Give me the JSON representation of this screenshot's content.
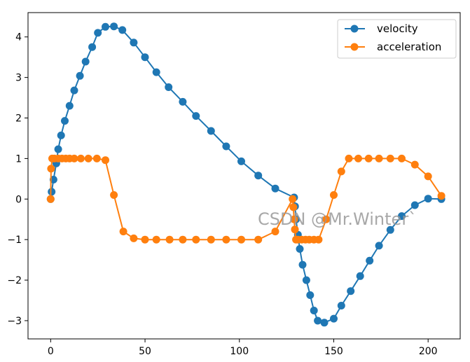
{
  "chart_data": {
    "type": "line",
    "title": "",
    "xlabel": "",
    "ylabel": "",
    "xlim": [
      -12,
      217
    ],
    "ylim": [
      -3.45,
      4.6
    ],
    "xticks": [
      0,
      50,
      100,
      150,
      200
    ],
    "yticks": [
      -3,
      -2,
      -1,
      0,
      1,
      2,
      3,
      4
    ],
    "grid": false,
    "legend_position": "top-right",
    "series": [
      {
        "name": "velocity",
        "color": "#1f77b4",
        "x": [
          0,
          0.5,
          1.5,
          3,
          4,
          5.5,
          7.5,
          10,
          12.5,
          15.5,
          18.5,
          22,
          25,
          29,
          33.5,
          38,
          44,
          50,
          56,
          62.5,
          70,
          77,
          85,
          93,
          101,
          110,
          119,
          129,
          129.5,
          130,
          131,
          132,
          133.5,
          135.5,
          137.5,
          139.5,
          141.5,
          145,
          150,
          154,
          159,
          164,
          169,
          174,
          180,
          186,
          193,
          200,
          207
        ],
        "y": [
          0,
          0.18,
          0.48,
          0.88,
          1.23,
          1.57,
          1.93,
          2.3,
          2.68,
          3.04,
          3.39,
          3.75,
          4.1,
          4.25,
          4.26,
          4.17,
          3.86,
          3.5,
          3.13,
          2.76,
          2.4,
          2.05,
          1.68,
          1.3,
          0.93,
          0.58,
          0.26,
          0.04,
          -0.18,
          -0.5,
          -0.88,
          -1.23,
          -1.62,
          -2.0,
          -2.37,
          -2.75,
          -3.0,
          -3.05,
          -2.95,
          -2.63,
          -2.27,
          -1.9,
          -1.52,
          -1.15,
          -0.76,
          -0.42,
          -0.15,
          0.01,
          0.0
        ]
      },
      {
        "name": "acceleration",
        "color": "#ff7f0e",
        "x": [
          0,
          0.2,
          0.8,
          2,
          4,
          6,
          8,
          10,
          12.5,
          16,
          20,
          24.5,
          29,
          33.5,
          38.5,
          44,
          50,
          56,
          63,
          70,
          77,
          85,
          93,
          101,
          110,
          119,
          128.2,
          128.6,
          129,
          129.4,
          130,
          131,
          133,
          135,
          137,
          139.5,
          142,
          146,
          150,
          154,
          158,
          163,
          168.5,
          174,
          180,
          186,
          193,
          200,
          207
        ],
        "y": [
          0,
          0.75,
          1.0,
          1.0,
          1.0,
          1.0,
          1.0,
          1.0,
          1.0,
          1.0,
          1.0,
          1.0,
          0.96,
          0.1,
          -0.8,
          -0.97,
          -1.0,
          -1.0,
          -1.0,
          -1.0,
          -1.0,
          -1.0,
          -1.0,
          -1.0,
          -1.0,
          -0.8,
          0.0,
          -0.2,
          -0.5,
          -0.75,
          -1.0,
          -1.0,
          -1.0,
          -1.0,
          -1.0,
          -1.0,
          -1.0,
          -0.5,
          0.1,
          0.68,
          1.0,
          1.0,
          1.0,
          1.0,
          1.0,
          1.0,
          0.85,
          0.56,
          0.08
        ]
      }
    ],
    "watermark": "CSDN @Mr.Winter`"
  }
}
